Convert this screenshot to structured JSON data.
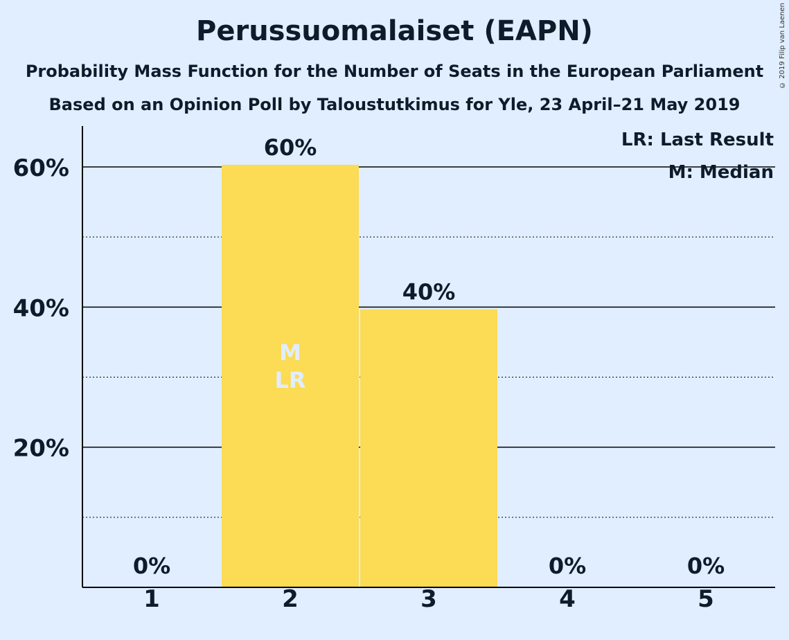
{
  "copyright": "© 2019 Filip van Laenen",
  "chart_data": {
    "type": "bar",
    "title": "Perussuomalaiset (EAPN)",
    "subtitle": "Probability Mass Function for the Number of Seats in the European Parliament",
    "subtitle2": "Based on an Opinion Poll by Taloustutkimus for Yle, 23 April–21 May 2019",
    "categories": [
      "1",
      "2",
      "3",
      "4",
      "5"
    ],
    "values": [
      0,
      60.3,
      39.7,
      0,
      0
    ],
    "value_labels": [
      "0%",
      "60%",
      "40%",
      "0%",
      "0%"
    ],
    "ylim": [
      0,
      65
    ],
    "yticks": [
      20,
      40,
      60
    ],
    "ytick_labels": [
      "20%",
      "40%",
      "60%"
    ],
    "minor_gridlines": [
      10,
      30,
      50
    ],
    "bar_markers": {
      "1": "M",
      "2": "LR"
    },
    "marker_category_index": 1,
    "legend": [
      "LR: Last Result",
      "M: Median"
    ],
    "legend_position": "top-right",
    "colors": {
      "background": "#e0eeff",
      "bar": "#fcdb55",
      "text": "#0d1b2a",
      "marker_text": "#e0eeff"
    }
  }
}
